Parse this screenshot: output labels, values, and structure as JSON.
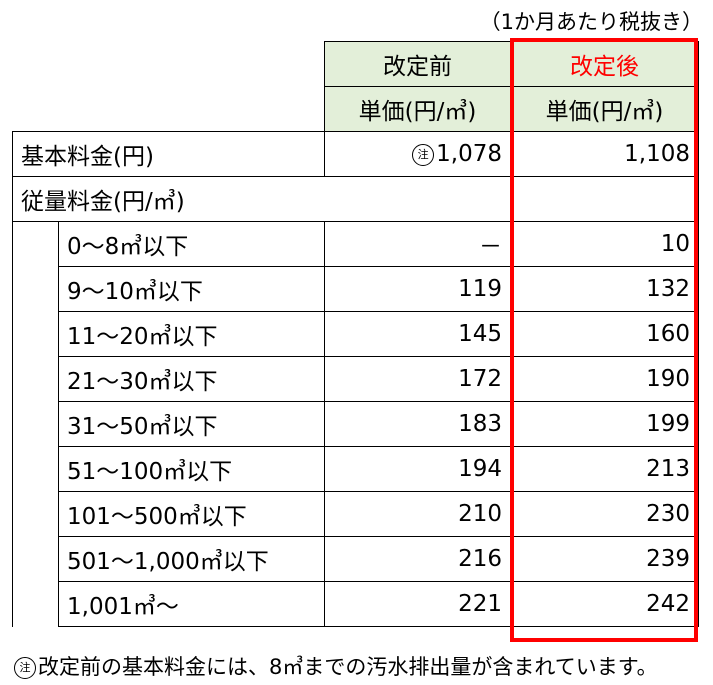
{
  "unit_note": "（1か月あたり税抜き）",
  "header": {
    "before_label": "改定前",
    "after_label": "改定後",
    "unit_label": "単価(円/㎥)",
    "after_color": "#ff0000",
    "header_bg": "#e3efd9"
  },
  "base_fee": {
    "label": "基本料金(円)",
    "annotation_mark": "注",
    "before": "1,078",
    "after": "1,108"
  },
  "usage_fee": {
    "label": "従量料金(円/㎥)",
    "rows": [
      {
        "range": "0～8㎥以下",
        "before": "－",
        "after": "10"
      },
      {
        "range": "9～10㎥以下",
        "before": "119",
        "after": "132"
      },
      {
        "range": "11～20㎥以下",
        "before": "145",
        "after": "160"
      },
      {
        "range": "21～30㎥以下",
        "before": "172",
        "after": "190"
      },
      {
        "range": "31～50㎥以下",
        "before": "183",
        "after": "199"
      },
      {
        "range": "51～100㎥以下",
        "before": "194",
        "after": "213"
      },
      {
        "range": "101～500㎥以下",
        "before": "210",
        "after": "230"
      },
      {
        "range": "501～1,000㎥以下",
        "before": "216",
        "after": "239"
      },
      {
        "range": "1,001㎥～",
        "before": "221",
        "after": "242"
      }
    ]
  },
  "footnote": {
    "mark": "注",
    "text": "改定前の基本料金には、8㎥までの汚水排出量が含まれています。"
  }
}
